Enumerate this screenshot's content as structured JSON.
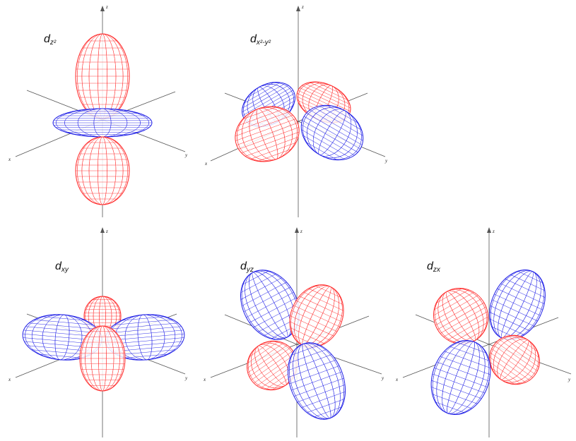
{
  "colors": {
    "positive": "#ff2a2a",
    "negative": "#1f1fe6",
    "axis": "#555555"
  },
  "orbitals": [
    {
      "id": "dz2",
      "label_main": "d",
      "label_sub": "z²",
      "axes": {
        "x": "x",
        "y": "y",
        "z": "z"
      }
    },
    {
      "id": "dx2-y2",
      "label_main": "d",
      "label_sub": "x²-y²",
      "axes": {
        "x": "x",
        "y": "y",
        "z": "z"
      }
    },
    {
      "id": "dxy",
      "label_main": "d",
      "label_sub": "xy",
      "axes": {
        "x": "x",
        "y": "y",
        "z": "z"
      }
    },
    {
      "id": "dyz",
      "label_main": "d",
      "label_sub": "yz",
      "axes": {
        "x": "x",
        "y": "y",
        "z": "z"
      }
    },
    {
      "id": "dzx",
      "label_main": "d",
      "label_sub": "zx",
      "axes": {
        "x": "x",
        "y": "y",
        "z": "z"
      }
    }
  ]
}
